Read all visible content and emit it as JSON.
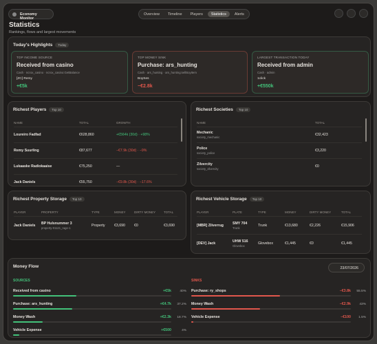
{
  "app": {
    "name": "Economy Monitor",
    "nav": [
      "Overview",
      "Timeline",
      "Players",
      "Statistics",
      "Alerts"
    ]
  },
  "header": {
    "title": "Statistics",
    "subtitle": "Rankings, flows and largest movements"
  },
  "highlights": {
    "title": "Today's Highlights",
    "badge": "Today",
    "cards": [
      {
        "label": "TOP INCOME SOURCE",
        "title": "Received from casino",
        "detail": "Cash · ncrox_casino · ncrox_casino:GetBalance",
        "actor": "[ZC] Remy",
        "amount": "+€5k"
      },
      {
        "label": "TOP MONEY SINK",
        "title": "Purchase: ars_hunting",
        "detail": "Cash · ars_hunting · ars_hunting:sellBoyItem",
        "actor": "BoySes",
        "amount": "−€2.8k"
      },
      {
        "label": "LARGEST TRANSACTION TODAY",
        "title": "Received from admin",
        "detail": "Cash · admin",
        "actor": "1click",
        "amount": "+€550k"
      }
    ]
  },
  "richest_players": {
    "title": "Richest Players",
    "badge": "Top 10",
    "columns": [
      "NAME",
      "TOTAL",
      "GROWTH"
    ],
    "rows": [
      [
        "Loureiro Fadfad",
        "€628,860",
        "+€564k (30d) · +98%"
      ],
      [
        "Remy Suurling",
        "€87,677",
        "−€7.9k (30d) · −9%"
      ],
      [
        "Lukaaske Radiokaaise",
        "€75,250",
        "—"
      ],
      [
        "Jack Daniels",
        "€55,750",
        "−€9.8k (30d) · −17.6%"
      ]
    ]
  },
  "richest_societies": {
    "title": "Richest Societies",
    "badge": "Top 10",
    "columns": [
      "NAME",
      "TOTAL"
    ],
    "rows": [
      [
        {
          "text": "Mechanic",
          "sub": "society_mechanic"
        },
        "€32,423"
      ],
      [
        {
          "text": "Police",
          "sub": "society_police"
        },
        "€3,220"
      ],
      [
        {
          "text": "Zilvercity",
          "sub": "society_zilvercity"
        },
        "€0"
      ]
    ]
  },
  "richest_property_storage": {
    "title": "Richest Property Storage",
    "badge": "Top 10",
    "columns": [
      "PLAYER",
      "PROPERTY",
      "TYPE",
      "MONEY",
      "DIRTY MONEY",
      "TOTAL"
    ],
    "rows": [
      [
        "Jack Daniels",
        {
          "text": "BP Hulsnummer 3",
          "sub": "property-01121_rage-1"
        },
        "Property",
        "€3,690",
        "€0",
        "€3,690"
      ]
    ]
  },
  "richest_vehicle_storage": {
    "title": "Richest Vehicle Storage",
    "badge": "Top 10",
    "columns": [
      "PLAYER",
      "PLATE",
      "TYPE",
      "MONEY",
      "DIRTY MONEY",
      "TOTAL"
    ],
    "rows": [
      [
        "[MBR] Zilverrug",
        {
          "text": "SMY 704",
          "sub": "Trunk"
        },
        "Trunk",
        "€13,680",
        "€2,226",
        "€15,906"
      ],
      [
        "[DEV] Jack",
        {
          "text": "UHW 516",
          "sub": "Glovebox"
        },
        "Glovebox",
        "€1,445",
        "€0",
        "€1,445"
      ]
    ]
  },
  "money_flow": {
    "title": "Money Flow",
    "date": "23/07/2026",
    "sources": {
      "title": "SOURCES",
      "rows": [
        {
          "name": "Received from casino",
          "amount": "+€5k",
          "share": "40%"
        },
        {
          "name": "Purchase: ars_hunting",
          "amount": "+€4.7k",
          "share": "37.2%"
        },
        {
          "name": "Money Wash",
          "amount": "+€2.3k",
          "share": "18.7%"
        },
        {
          "name": "Vehicle Expense",
          "amount": "+€500",
          "share": "4%"
        }
      ]
    },
    "sinks": {
      "title": "SINKS",
      "rows": [
        {
          "name": "Purchase: ry_shops",
          "amount": "−€3.8k",
          "share": "55.5%"
        },
        {
          "name": "Money Wash",
          "amount": "−€2.9k",
          "share": "43%"
        },
        {
          "name": "Vehicle Expense",
          "amount": "−€100",
          "share": "1.5%"
        }
      ]
    }
  }
}
